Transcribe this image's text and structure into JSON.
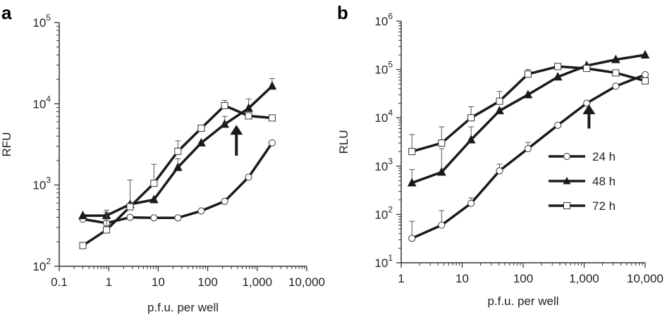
{
  "colors": {
    "line": "#1a1a1a",
    "marker_fill": "#ffffff",
    "background": "#ffffff"
  },
  "chart_data": [
    {
      "panel": "a",
      "type": "line",
      "xscale": "log",
      "yscale": "log",
      "xlim": [
        0.1,
        10000
      ],
      "ylim": [
        100,
        100000
      ],
      "xlabel": "p.f.u. per well",
      "ylabel": "RFU",
      "xticks": [
        {
          "value": 0.1,
          "label": "0.1"
        },
        {
          "value": 1,
          "label": "1"
        },
        {
          "value": 10,
          "label": "10"
        },
        {
          "value": 100,
          "label": "100"
        },
        {
          "value": 1000,
          "label": "1,000"
        },
        {
          "value": 10000,
          "label": "10,000"
        }
      ],
      "yticks": [
        {
          "value": 100,
          "base": "10",
          "exp": "2"
        },
        {
          "value": 1000,
          "base": "10",
          "exp": "3"
        },
        {
          "value": 10000,
          "base": "10",
          "exp": "4"
        },
        {
          "value": 100000,
          "base": "10",
          "exp": "5"
        }
      ],
      "series": [
        {
          "name": "24 h",
          "marker": "circle",
          "x": [
            0.3,
            0.9,
            2.7,
            8.2,
            25,
            74,
            220,
            670,
            2000
          ],
          "y": [
            380,
            340,
            400,
            395,
            395,
            480,
            630,
            1250,
            3300
          ],
          "yerr_upper": [
            null,
            null,
            null,
            null,
            null,
            null,
            null,
            null,
            null
          ]
        },
        {
          "name": "48 h",
          "marker": "triangle",
          "x": [
            0.3,
            0.9,
            2.7,
            8.2,
            25,
            74,
            220,
            670,
            2000
          ],
          "y": [
            420,
            420,
            580,
            660,
            1650,
            3300,
            5600,
            8800,
            16500
          ],
          "yerr_upper": [
            null,
            490,
            null,
            null,
            2100,
            null,
            7000,
            11500,
            20500
          ]
        },
        {
          "name": "72 h",
          "marker": "square",
          "x": [
            0.3,
            0.9,
            2.7,
            8.2,
            25,
            74,
            220,
            670,
            2000
          ],
          "y": [
            180,
            280,
            540,
            1050,
            2600,
            5000,
            9500,
            7100,
            6700
          ],
          "yerr_upper": [
            null,
            460,
            1150,
            1800,
            3500,
            null,
            11000,
            null,
            null
          ]
        }
      ],
      "annotation": {
        "type": "arrow",
        "x": 380,
        "y_tip": 5500,
        "y_tail": 2300
      }
    },
    {
      "panel": "b",
      "type": "line",
      "xscale": "log",
      "yscale": "log",
      "xlim": [
        1,
        10000
      ],
      "ylim": [
        10,
        1000000
      ],
      "xlabel": "p.f.u. per well",
      "ylabel": "RLU",
      "xticks": [
        {
          "value": 1,
          "label": "1"
        },
        {
          "value": 10,
          "label": "10"
        },
        {
          "value": 100,
          "label": "100"
        },
        {
          "value": 1000,
          "label": "1,000"
        },
        {
          "value": 10000,
          "label": "10,000"
        }
      ],
      "yticks": [
        {
          "value": 10,
          "base": "10",
          "exp": "1"
        },
        {
          "value": 100,
          "base": "10",
          "exp": "2"
        },
        {
          "value": 1000,
          "base": "10",
          "exp": "3"
        },
        {
          "value": 10000,
          "base": "10",
          "exp": "4"
        },
        {
          "value": 100000,
          "base": "10",
          "exp": "5"
        },
        {
          "value": 1000000,
          "base": "10",
          "exp": "6"
        }
      ],
      "series": [
        {
          "name": "24 h",
          "marker": "circle",
          "x": [
            1.5,
            4.6,
            14,
            41,
            120,
            370,
            1100,
            3300,
            10000
          ],
          "y": [
            32,
            60,
            170,
            800,
            2300,
            7000,
            20000,
            45000,
            78000
          ],
          "yerr_upper": [
            72,
            120,
            220,
            1100,
            3100,
            null,
            null,
            null,
            null
          ]
        },
        {
          "name": "48 h",
          "marker": "triangle",
          "x": [
            1.5,
            4.6,
            14,
            41,
            120,
            370,
            1100,
            3300,
            10000
          ],
          "y": [
            450,
            750,
            3500,
            14000,
            30000,
            70000,
            120000,
            160000,
            200000
          ],
          "yerr_upper": [
            850,
            2300,
            6500,
            null,
            null,
            null,
            null,
            null,
            null
          ]
        },
        {
          "name": "72 h",
          "marker": "square",
          "x": [
            1.5,
            4.6,
            14,
            41,
            120,
            370,
            1100,
            3300,
            10000
          ],
          "y": [
            2000,
            3000,
            10000,
            22000,
            80000,
            115000,
            105000,
            85000,
            58000
          ],
          "yerr_upper": [
            4500,
            6500,
            17000,
            35000,
            100000,
            null,
            null,
            null,
            null
          ]
        }
      ],
      "annotation": {
        "type": "arrow",
        "x": 1200,
        "y_tip": 19000,
        "y_tail": 6000
      },
      "legend": {
        "position": "right",
        "entries": [
          "24 h",
          "48 h",
          "72 h"
        ]
      }
    }
  ]
}
